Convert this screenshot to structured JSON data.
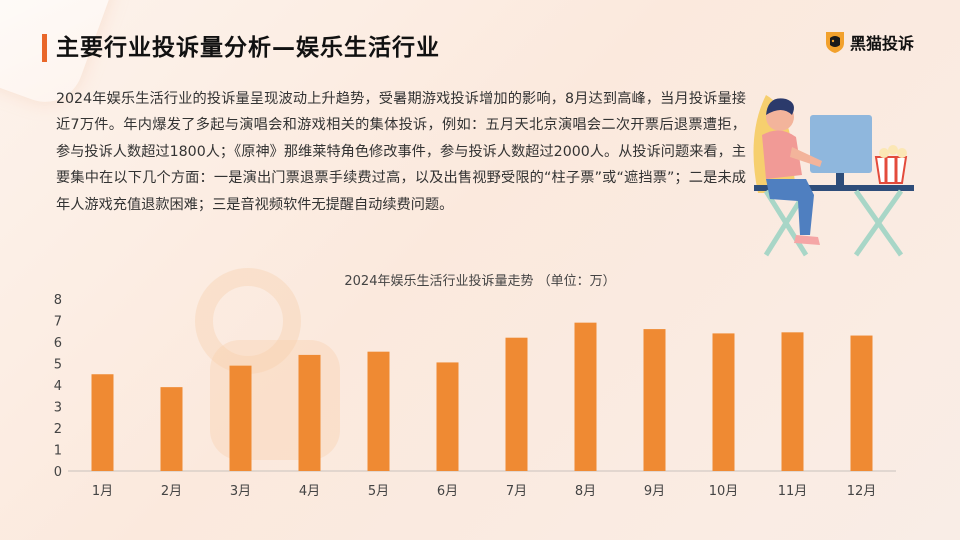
{
  "header": {
    "title": "主要行业投诉量分析—娱乐生活行业"
  },
  "logo": {
    "text": "黑猫投诉",
    "icon": "black-cat-shield-icon"
  },
  "intro": "2024年娱乐生活行业的投诉量呈现波动上升趋势，受暑期游戏投诉增加的影响，8月达到高峰，当月投诉量接近7万件。年内爆发了多起与演唱会和游戏相关的集体投诉，例如：五月天北京演唱会二次开票后退票遭拒，参与投诉人数超过1800人；《原神》那维莱特角色修改事件，参与投诉人数超过2000人。从投诉问题来看，主要集中在以下几个方面：一是演出门票退票手续费过高，以及出售视野受限的“柱子票”或“遮挡票”；二是未成年人游戏充值退款困难；三是音视频软件无提醒自动续费问题。",
  "colors": {
    "accent": "#e9672a",
    "bar": "#ef8a33"
  },
  "chart_data": {
    "type": "bar",
    "title": "2024年娱乐生活行业投诉量走势 （单位：万）",
    "categories": [
      "1月",
      "2月",
      "3月",
      "4月",
      "5月",
      "6月",
      "7月",
      "8月",
      "9月",
      "10月",
      "11月",
      "12月"
    ],
    "values": [
      4.5,
      3.9,
      4.9,
      5.4,
      5.55,
      5.05,
      6.2,
      6.9,
      6.6,
      6.4,
      6.45,
      6.3
    ],
    "ylim": [
      0,
      8
    ],
    "yticks": [
      "0",
      "1",
      "2",
      "3",
      "4",
      "5",
      "6",
      "7",
      "8"
    ],
    "grid": false,
    "legend": "none"
  }
}
